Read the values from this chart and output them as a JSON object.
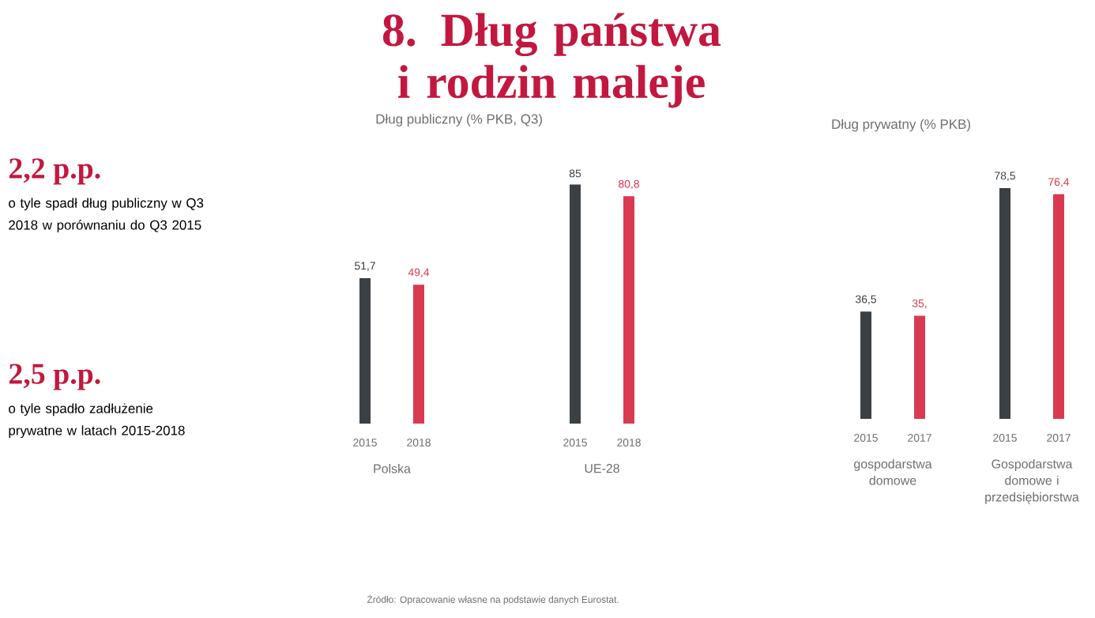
{
  "chart_data": [
    {
      "type": "other",
      "title": "8. Dług państwa i rodzin maleje",
      "annotations": [
        "2,2 p.p.",
        "o tyle spadł dług publiczny w Q3 2018 w porównaniu do Q3 2015",
        "2,5 p.p.",
        "o tyle spadło zadłużenie prywatne w latach 2015-2018",
        "Źródło: Opracowanie własne na podstawie danych Eurostat."
      ]
    },
    {
      "type": "bar",
      "title": "Dług publiczny (% PKB, Q3)",
      "categories": [
        "Polska",
        "UE-28"
      ],
      "series": [
        {
          "name": "2015",
          "color": "#3b4044",
          "values": [
            51.7,
            85
          ],
          "value_labels": [
            "51,7",
            "85"
          ]
        },
        {
          "name": "2018",
          "color": "#d93a52",
          "values": [
            49.4,
            80.8
          ],
          "value_labels": [
            "49,4",
            "80,8"
          ]
        }
      ]
    },
    {
      "type": "bar",
      "title": "Dług prywatny (% PKB)",
      "categories": [
        "gospodarstwa domowe",
        "Gospodarstwa domowe i przedsiębiorstwa"
      ],
      "series": [
        {
          "name": "2015",
          "color": "#3b4044",
          "values": [
            36.5,
            78.5
          ],
          "value_labels": [
            "36,5",
            "78,5"
          ]
        },
        {
          "name": "2017",
          "color": "#d93a52",
          "values": [
            35.1,
            76.4
          ],
          "value_labels": [
            "35,",
            "76,4"
          ]
        }
      ]
    }
  ]
}
